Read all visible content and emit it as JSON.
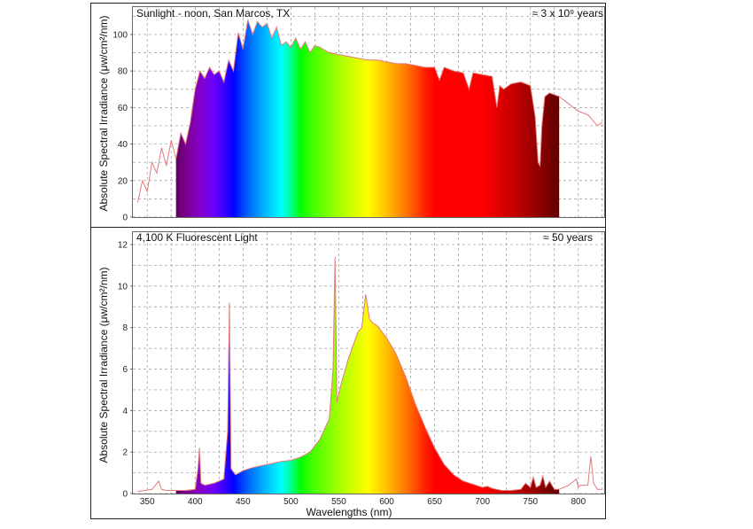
{
  "chart_data": [
    {
      "type": "area",
      "title": "Sunlight - noon, San Marcos, TX",
      "annotation": "≈ 3 x 10⁹ years",
      "ylabel": "Absolute Spectral Irradiance (μw/cm²/nm)",
      "xlabel": "",
      "xlim": [
        335,
        827
      ],
      "ylim": [
        0,
        115
      ],
      "yticks": [
        0,
        20,
        40,
        60,
        80,
        100
      ],
      "grid": true,
      "fill": "visible-spectrum rainbow (380-780 nm)",
      "series": [
        {
          "x": [
            340,
            345,
            350,
            355,
            360,
            365,
            370,
            375,
            380,
            385,
            390,
            395,
            400,
            405,
            410,
            415,
            420,
            425,
            430,
            435,
            440,
            445,
            450,
            455,
            460,
            465,
            470,
            475,
            480,
            485,
            490,
            495,
            500,
            505,
            510,
            515,
            520,
            525,
            530,
            540,
            550,
            560,
            570,
            580,
            590,
            600,
            610,
            620,
            630,
            640,
            650,
            655,
            660,
            665,
            670,
            680,
            686,
            690,
            700,
            710,
            715,
            718,
            722,
            730,
            740,
            750,
            755,
            758,
            760,
            762,
            765,
            770,
            780,
            790,
            800,
            810,
            820,
            825
          ],
          "values": [
            8,
            20,
            14,
            30,
            24,
            38,
            28,
            42,
            32,
            46,
            40,
            52,
            70,
            80,
            76,
            82,
            78,
            80,
            74,
            86,
            80,
            101,
            92,
            108,
            100,
            107,
            104,
            106,
            98,
            104,
            94,
            96,
            93,
            98,
            92,
            96,
            90,
            94,
            93,
            90,
            89,
            88,
            87,
            86,
            86,
            85,
            84,
            84,
            83,
            82,
            82,
            75,
            82,
            81,
            80,
            79,
            70,
            79,
            78,
            77,
            60,
            72,
            70,
            73,
            74,
            72,
            55,
            30,
            28,
            50,
            66,
            68,
            66,
            62,
            58,
            56,
            50,
            52
          ]
        }
      ]
    },
    {
      "type": "area",
      "title": "4,100 K Fluorescent Light",
      "annotation": "≈ 50 years",
      "ylabel": "Absolute Spectral Irradiance (μw/cm²/nm)",
      "xlabel": "Wavelengths (nm)",
      "xlim": [
        335,
        827
      ],
      "ylim": [
        0,
        12.6
      ],
      "yticks": [
        0,
        2,
        4,
        6,
        8,
        10,
        12
      ],
      "xticks": [
        350,
        400,
        450,
        500,
        550,
        600,
        650,
        700,
        750,
        800
      ],
      "grid": true,
      "fill": "visible-spectrum rainbow (380-780 nm)",
      "series": [
        {
          "x": [
            340,
            355,
            362,
            365,
            370,
            380,
            390,
            400,
            403,
            404.5,
            406,
            410,
            420,
            430,
            434,
            435.8,
            437.5,
            442,
            450,
            460,
            470,
            480,
            490,
            500,
            510,
            520,
            530,
            540,
            544,
            546,
            548,
            552,
            560,
            570,
            574,
            578,
            582,
            586,
            590,
            600,
            610,
            620,
            630,
            640,
            650,
            660,
            670,
            680,
            690,
            700,
            705,
            710,
            720,
            730,
            740,
            745,
            750,
            753,
            756,
            760,
            763,
            766,
            770,
            775,
            780,
            790,
            798,
            800,
            802,
            810,
            813,
            816,
            820,
            825
          ],
          "values": [
            0.1,
            0.2,
            0.6,
            0.2,
            0.15,
            0.15,
            0.15,
            0.2,
            1.2,
            2.2,
            0.5,
            0.4,
            0.5,
            0.7,
            3.0,
            9.2,
            1.2,
            0.9,
            1.1,
            1.25,
            1.35,
            1.45,
            1.55,
            1.6,
            1.75,
            2.0,
            2.6,
            3.6,
            6.0,
            11.4,
            4.4,
            5.2,
            6.5,
            7.8,
            8.0,
            9.6,
            8.4,
            8.2,
            8.1,
            7.5,
            6.7,
            5.6,
            4.3,
            3.2,
            2.2,
            1.4,
            0.9,
            0.6,
            0.45,
            0.3,
            0.35,
            0.25,
            0.15,
            0.15,
            0.2,
            0.5,
            0.3,
            0.8,
            0.3,
            0.4,
            0.85,
            0.3,
            0.6,
            0.2,
            0.2,
            0.4,
            0.7,
            0.3,
            0.4,
            0.4,
            1.8,
            0.5,
            0.2,
            0.2
          ]
        }
      ]
    }
  ]
}
